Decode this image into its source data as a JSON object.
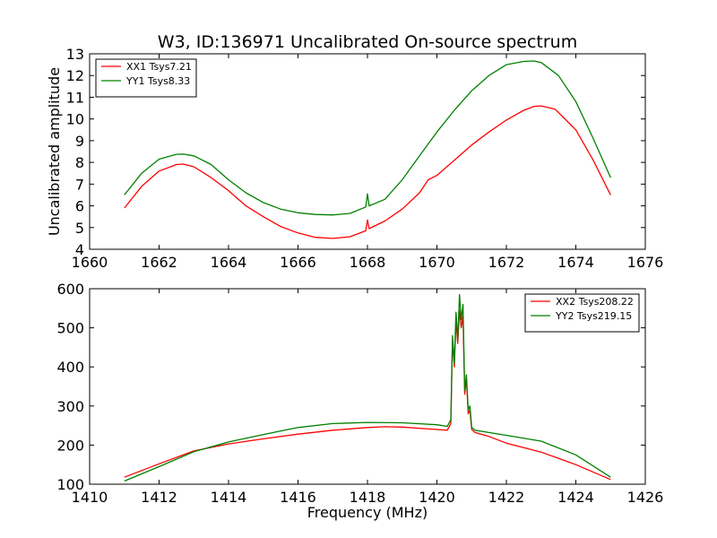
{
  "title": "W3, ID:136971 Uncalibrated On-source spectrum",
  "colors": {
    "red": "#ff0000",
    "green": "#008000"
  },
  "chart_data": [
    {
      "type": "line",
      "ylabel": "Uncalibrated amplitude",
      "xlabel": "",
      "xlim": [
        1660,
        1676
      ],
      "ylim": [
        4,
        13
      ],
      "xticks": [
        1660,
        1662,
        1664,
        1666,
        1668,
        1670,
        1672,
        1674,
        1676
      ],
      "yticks": [
        4,
        5,
        6,
        7,
        8,
        9,
        10,
        11,
        12,
        13
      ],
      "grid": false,
      "legend_position": "top-left",
      "series": [
        {
          "name": "XX1 Tsys7.21",
          "color": "#ff0000",
          "x": [
            1661.0,
            1661.5,
            1662.0,
            1662.5,
            1662.7,
            1663.0,
            1663.5,
            1664.0,
            1664.5,
            1665.0,
            1665.5,
            1666.0,
            1666.5,
            1667.0,
            1667.5,
            1667.95,
            1668.0,
            1668.05,
            1668.5,
            1669.0,
            1669.5,
            1669.75,
            1670.0,
            1670.5,
            1671.0,
            1671.5,
            1672.0,
            1672.5,
            1672.8,
            1673.0,
            1673.4,
            1673.5,
            1674.0,
            1674.5,
            1675.0
          ],
          "y": [
            5.9,
            6.9,
            7.6,
            7.9,
            7.92,
            7.8,
            7.3,
            6.7,
            6.0,
            5.5,
            5.05,
            4.75,
            4.55,
            4.5,
            4.58,
            4.85,
            5.35,
            4.95,
            5.3,
            5.85,
            6.6,
            7.2,
            7.4,
            8.1,
            8.8,
            9.4,
            9.95,
            10.4,
            10.58,
            10.6,
            10.45,
            10.3,
            9.5,
            8.1,
            6.5
          ]
        },
        {
          "name": "YY1 Tsys8.33",
          "color": "#008000",
          "x": [
            1661.0,
            1661.5,
            1662.0,
            1662.5,
            1662.7,
            1663.0,
            1663.5,
            1664.0,
            1664.5,
            1665.0,
            1665.5,
            1666.0,
            1666.5,
            1667.0,
            1667.5,
            1667.95,
            1668.0,
            1668.05,
            1668.5,
            1669.0,
            1669.5,
            1670.0,
            1670.5,
            1671.0,
            1671.5,
            1672.0,
            1672.5,
            1672.8,
            1673.0,
            1673.5,
            1674.0,
            1674.5,
            1675.0
          ],
          "y": [
            6.5,
            7.5,
            8.15,
            8.37,
            8.38,
            8.3,
            7.9,
            7.2,
            6.6,
            6.15,
            5.85,
            5.68,
            5.6,
            5.58,
            5.65,
            5.95,
            6.55,
            6.0,
            6.3,
            7.2,
            8.3,
            9.4,
            10.4,
            11.3,
            12.0,
            12.5,
            12.65,
            12.67,
            12.6,
            12.0,
            10.8,
            9.1,
            7.3
          ]
        }
      ]
    },
    {
      "type": "line",
      "ylabel": "",
      "xlabel": "Frequency (MHz)",
      "xlim": [
        1410,
        1426
      ],
      "ylim": [
        100,
        600
      ],
      "xticks": [
        1410,
        1412,
        1414,
        1416,
        1418,
        1420,
        1422,
        1424,
        1426
      ],
      "yticks": [
        100,
        200,
        300,
        400,
        500,
        600
      ],
      "grid": false,
      "legend_position": "top-right",
      "series": [
        {
          "name": "XX2 Tsys208.22",
          "color": "#ff0000",
          "x": [
            1411.0,
            1412.0,
            1413.0,
            1414.0,
            1415.0,
            1416.0,
            1417.0,
            1418.0,
            1418.5,
            1419.0,
            1420.0,
            1420.3,
            1420.4,
            1420.45,
            1420.5,
            1420.55,
            1420.6,
            1420.65,
            1420.7,
            1420.75,
            1420.8,
            1420.85,
            1420.9,
            1420.95,
            1421.0,
            1421.1,
            1421.5,
            1422.0,
            1423.0,
            1424.0,
            1425.0
          ],
          "y": [
            118,
            152,
            185,
            203,
            216,
            228,
            238,
            245,
            247,
            246,
            240,
            238,
            255,
            470,
            400,
            520,
            460,
            545,
            500,
            530,
            330,
            370,
            280,
            290,
            240,
            232,
            222,
            205,
            182,
            150,
            112
          ]
        },
        {
          "name": "YY2 Tsys219.15",
          "color": "#008000",
          "x": [
            1411.0,
            1412.0,
            1413.0,
            1414.0,
            1415.0,
            1416.0,
            1417.0,
            1418.0,
            1419.0,
            1420.0,
            1420.3,
            1420.4,
            1420.45,
            1420.5,
            1420.55,
            1420.6,
            1420.65,
            1420.7,
            1420.75,
            1420.8,
            1420.85,
            1420.9,
            1420.95,
            1421.0,
            1421.1,
            1421.5,
            1422.0,
            1423.0,
            1424.0,
            1425.0
          ],
          "y": [
            108,
            145,
            183,
            208,
            227,
            245,
            255,
            258,
            257,
            252,
            248,
            265,
            480,
            410,
            540,
            470,
            585,
            520,
            560,
            340,
            380,
            290,
            300,
            245,
            238,
            232,
            225,
            210,
            175,
            118
          ]
        }
      ]
    }
  ]
}
